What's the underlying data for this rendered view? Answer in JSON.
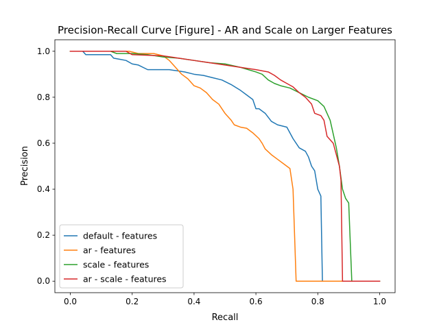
{
  "chart_data": {
    "type": "line",
    "title": "Precision-Recall Curve [Figure] - AR and Scale on Larger Features",
    "xlabel": "Recall",
    "ylabel": "Precision",
    "xlim": [
      -0.05,
      1.05
    ],
    "ylim": [
      -0.05,
      1.05
    ],
    "xticks": [
      "0.0",
      "0.2",
      "0.4",
      "0.6",
      "0.8",
      "1.0"
    ],
    "yticks": [
      "0.0",
      "0.2",
      "0.4",
      "0.6",
      "0.8",
      "1.0"
    ],
    "grid": false,
    "legend_position": "lower-left",
    "series": [
      {
        "name": "default - features",
        "color": "#1f77b4",
        "points": [
          [
            0.0,
            1.0
          ],
          [
            0.04,
            1.0
          ],
          [
            0.05,
            0.985
          ],
          [
            0.13,
            0.985
          ],
          [
            0.14,
            0.97
          ],
          [
            0.16,
            0.965
          ],
          [
            0.18,
            0.96
          ],
          [
            0.2,
            0.945
          ],
          [
            0.22,
            0.94
          ],
          [
            0.25,
            0.92
          ],
          [
            0.32,
            0.92
          ],
          [
            0.37,
            0.91
          ],
          [
            0.4,
            0.9
          ],
          [
            0.43,
            0.895
          ],
          [
            0.46,
            0.885
          ],
          [
            0.49,
            0.875
          ],
          [
            0.52,
            0.855
          ],
          [
            0.55,
            0.83
          ],
          [
            0.57,
            0.81
          ],
          [
            0.59,
            0.79
          ],
          [
            0.6,
            0.75
          ],
          [
            0.61,
            0.75
          ],
          [
            0.63,
            0.73
          ],
          [
            0.65,
            0.695
          ],
          [
            0.67,
            0.68
          ],
          [
            0.7,
            0.67
          ],
          [
            0.72,
            0.62
          ],
          [
            0.74,
            0.58
          ],
          [
            0.76,
            0.565
          ],
          [
            0.77,
            0.54
          ],
          [
            0.78,
            0.5
          ],
          [
            0.79,
            0.48
          ],
          [
            0.8,
            0.4
          ],
          [
            0.81,
            0.37
          ],
          [
            0.815,
            0.0
          ],
          [
            1.0,
            0.0
          ]
        ]
      },
      {
        "name": "ar - features",
        "color": "#ff7f0e",
        "points": [
          [
            0.0,
            1.0
          ],
          [
            0.19,
            1.0
          ],
          [
            0.22,
            0.99
          ],
          [
            0.27,
            0.99
          ],
          [
            0.3,
            0.98
          ],
          [
            0.32,
            0.96
          ],
          [
            0.34,
            0.93
          ],
          [
            0.36,
            0.9
          ],
          [
            0.38,
            0.88
          ],
          [
            0.4,
            0.85
          ],
          [
            0.42,
            0.84
          ],
          [
            0.44,
            0.82
          ],
          [
            0.46,
            0.79
          ],
          [
            0.48,
            0.77
          ],
          [
            0.5,
            0.73
          ],
          [
            0.52,
            0.7
          ],
          [
            0.53,
            0.68
          ],
          [
            0.55,
            0.67
          ],
          [
            0.57,
            0.665
          ],
          [
            0.59,
            0.645
          ],
          [
            0.61,
            0.62
          ],
          [
            0.62,
            0.6
          ],
          [
            0.63,
            0.575
          ],
          [
            0.65,
            0.55
          ],
          [
            0.67,
            0.53
          ],
          [
            0.69,
            0.51
          ],
          [
            0.71,
            0.49
          ],
          [
            0.72,
            0.4
          ],
          [
            0.73,
            0.0
          ],
          [
            1.0,
            0.0
          ]
        ]
      },
      {
        "name": "scale - features",
        "color": "#2ca02c",
        "points": [
          [
            0.0,
            1.0
          ],
          [
            0.13,
            1.0
          ],
          [
            0.15,
            0.99
          ],
          [
            0.2,
            0.99
          ],
          [
            0.25,
            0.985
          ],
          [
            0.3,
            0.975
          ],
          [
            0.35,
            0.97
          ],
          [
            0.4,
            0.96
          ],
          [
            0.45,
            0.95
          ],
          [
            0.5,
            0.945
          ],
          [
            0.55,
            0.93
          ],
          [
            0.6,
            0.91
          ],
          [
            0.62,
            0.9
          ],
          [
            0.64,
            0.875
          ],
          [
            0.66,
            0.86
          ],
          [
            0.68,
            0.85
          ],
          [
            0.71,
            0.84
          ],
          [
            0.74,
            0.82
          ],
          [
            0.77,
            0.8
          ],
          [
            0.8,
            0.785
          ],
          [
            0.82,
            0.76
          ],
          [
            0.84,
            0.7
          ],
          [
            0.85,
            0.64
          ],
          [
            0.86,
            0.58
          ],
          [
            0.87,
            0.5
          ],
          [
            0.88,
            0.4
          ],
          [
            0.89,
            0.36
          ],
          [
            0.9,
            0.34
          ],
          [
            0.91,
            0.0
          ],
          [
            1.0,
            0.0
          ]
        ]
      },
      {
        "name": "ar - scale - features",
        "color": "#d62728",
        "points": [
          [
            0.0,
            1.0
          ],
          [
            0.18,
            1.0
          ],
          [
            0.2,
            0.985
          ],
          [
            0.3,
            0.98
          ],
          [
            0.35,
            0.97
          ],
          [
            0.4,
            0.96
          ],
          [
            0.45,
            0.95
          ],
          [
            0.5,
            0.94
          ],
          [
            0.55,
            0.93
          ],
          [
            0.6,
            0.92
          ],
          [
            0.64,
            0.91
          ],
          [
            0.66,
            0.895
          ],
          [
            0.68,
            0.875
          ],
          [
            0.7,
            0.86
          ],
          [
            0.72,
            0.845
          ],
          [
            0.74,
            0.82
          ],
          [
            0.76,
            0.8
          ],
          [
            0.78,
            0.77
          ],
          [
            0.79,
            0.73
          ],
          [
            0.81,
            0.72
          ],
          [
            0.82,
            0.7
          ],
          [
            0.83,
            0.63
          ],
          [
            0.85,
            0.6
          ],
          [
            0.86,
            0.55
          ],
          [
            0.87,
            0.5
          ],
          [
            0.875,
            0.44
          ],
          [
            0.88,
            0.0
          ],
          [
            1.0,
            0.0
          ]
        ]
      }
    ]
  }
}
